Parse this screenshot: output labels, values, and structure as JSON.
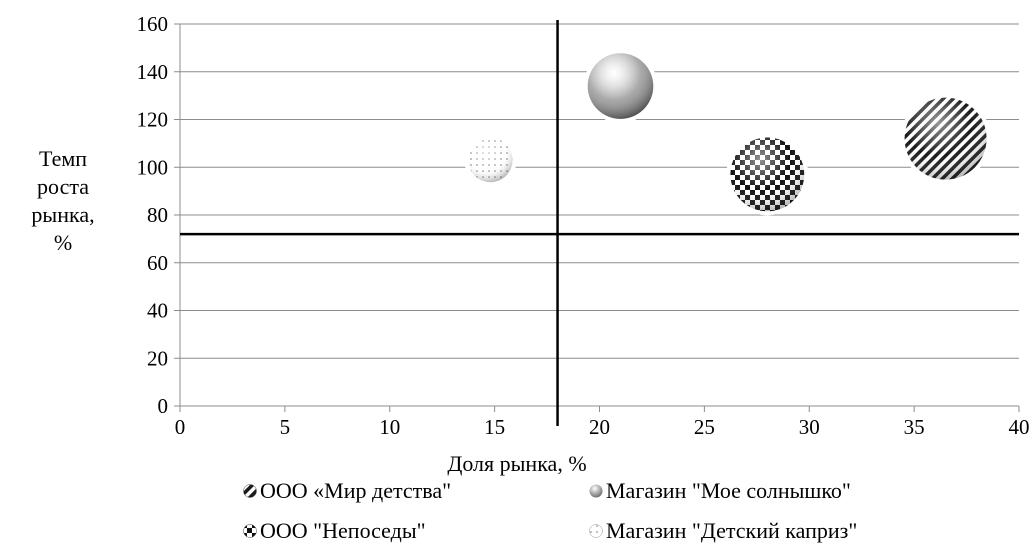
{
  "chart_data": {
    "type": "scatter",
    "subtype": "bubble",
    "title": "",
    "xlabel": "Доля рынка, %",
    "ylabel_lines": [
      "Темп",
      "роста",
      "рынка,",
      "%"
    ],
    "xlim": [
      0,
      40
    ],
    "ylim": [
      0,
      160
    ],
    "xticks": [
      "0",
      "5",
      "10",
      "15",
      "20",
      "25",
      "30",
      "35",
      "40"
    ],
    "yticks": [
      "0",
      "20",
      "40",
      "60",
      "80",
      "100",
      "120",
      "140",
      "160"
    ],
    "grid": "horizontal",
    "divider_lines": {
      "vertical_x": 18,
      "horizontal_y": 72
    },
    "legend_position": "bottom",
    "series": [
      {
        "name": "ООО «Мир детства\"",
        "x": 36.5,
        "y": 112,
        "bubble_size": 5,
        "fill": "diagonal-stripes"
      },
      {
        "name": "Магазин \"Мое солнышко\"",
        "x": 21,
        "y": 134,
        "bubble_size": 4,
        "fill": "gray-gradient"
      },
      {
        "name": "ООО \"Непоседы\"",
        "x": 28,
        "y": 97,
        "bubble_size": 4.5,
        "fill": "checkerboard"
      },
      {
        "name": "Магазин \"Детский  каприз\"",
        "x": 14.8,
        "y": 103,
        "bubble_size": 2.7,
        "fill": "dotted"
      }
    ]
  }
}
